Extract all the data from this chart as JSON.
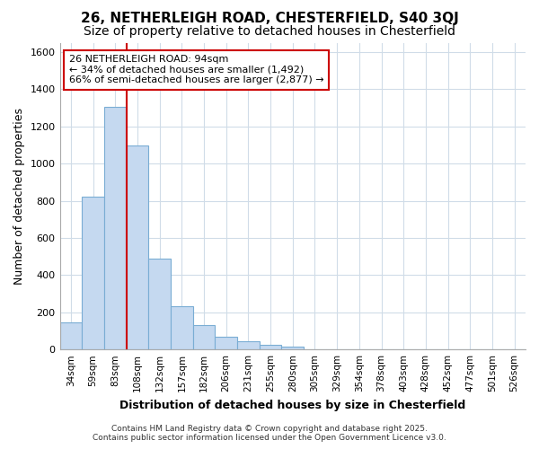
{
  "title_line1": "26, NETHERLEIGH ROAD, CHESTERFIELD, S40 3QJ",
  "title_line2": "Size of property relative to detached houses in Chesterfield",
  "xlabel": "Distribution of detached houses by size in Chesterfield",
  "ylabel": "Number of detached properties",
  "categories": [
    "34sqm",
    "59sqm",
    "83sqm",
    "108sqm",
    "132sqm",
    "157sqm",
    "182sqm",
    "206sqm",
    "231sqm",
    "255sqm",
    "280sqm",
    "305sqm",
    "329sqm",
    "354sqm",
    "378sqm",
    "403sqm",
    "428sqm",
    "452sqm",
    "477sqm",
    "501sqm",
    "526sqm"
  ],
  "values": [
    145,
    820,
    1305,
    1095,
    490,
    235,
    130,
    70,
    45,
    25,
    15,
    0,
    0,
    0,
    0,
    0,
    0,
    0,
    0,
    0,
    0
  ],
  "bar_color": "#c5d9f0",
  "bar_edge_color": "#7aadd4",
  "vline_x_pos": 2.5,
  "vline_color": "#cc0000",
  "annotation_text": "26 NETHERLEIGH ROAD: 94sqm\n← 34% of detached houses are smaller (1,492)\n66% of semi-detached houses are larger (2,877) →",
  "annotation_box_color": "#ffffff",
  "annotation_box_edge": "#cc0000",
  "ylim": [
    0,
    1650
  ],
  "yticks": [
    0,
    200,
    400,
    600,
    800,
    1000,
    1200,
    1400,
    1600
  ],
  "footer_line1": "Contains HM Land Registry data © Crown copyright and database right 2025.",
  "footer_line2": "Contains public sector information licensed under the Open Government Licence v3.0.",
  "bg_color": "#ffffff",
  "plot_bg_color": "#ffffff",
  "grid_color": "#d0dce8",
  "title_fontsize": 11,
  "subtitle_fontsize": 10,
  "xlabel_fontsize": 9,
  "ylabel_fontsize": 9
}
